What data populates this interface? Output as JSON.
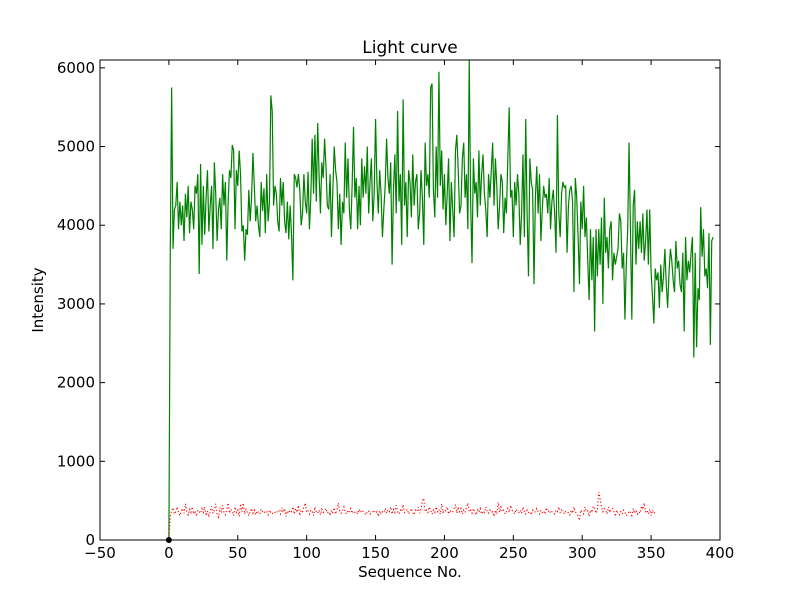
{
  "chart_data": {
    "type": "line",
    "title": "Light curve",
    "xlabel": "Sequence No.",
    "ylabel": "Intensity",
    "xlim": [
      -50,
      400
    ],
    "ylim": [
      0,
      6100
    ],
    "x_ticks": [
      -50,
      0,
      50,
      100,
      150,
      200,
      250,
      300,
      350,
      400
    ],
    "x_tick_labels": [
      "−50",
      "0",
      "50",
      "100",
      "150",
      "200",
      "250",
      "300",
      "350",
      "400"
    ],
    "y_ticks": [
      0,
      1000,
      2000,
      3000,
      4000,
      5000,
      6000
    ],
    "y_tick_labels": [
      "0",
      "1000",
      "2000",
      "3000",
      "4000",
      "5000",
      "6000"
    ],
    "grid": false,
    "series": [
      {
        "color": "#008000",
        "style": "solid",
        "x_start": 0,
        "x_step": 1,
        "values": [
          0,
          3650,
          5750,
          3700,
          4200,
          4250,
          4550,
          3950,
          4300,
          4000,
          4250,
          3800,
          4400,
          4100,
          4500,
          3900,
          4300,
          4200,
          3950,
          4500,
          4400,
          4650,
          3380,
          4780,
          3750,
          4500,
          3880,
          4350,
          4700,
          3920,
          4250,
          4500,
          3700,
          4800,
          4400,
          3800,
          4200,
          4350,
          3950,
          4650,
          4250,
          4550,
          3550,
          4300,
          4700,
          4600,
          5020,
          4950,
          3950,
          4700,
          4500,
          4950,
          4650,
          3920,
          4000,
          3550,
          3950,
          3880,
          4450,
          4050,
          4350,
          4920,
          4500,
          4050,
          4250,
          4000,
          3850,
          4550,
          4180,
          4470,
          3900,
          4650,
          4050,
          4300,
          5650,
          5450,
          4250,
          4500,
          4400,
          4050,
          3920,
          4600,
          4250,
          4550,
          4050,
          3900,
          4300,
          3820,
          4250,
          3880,
          3300,
          4650,
          4600,
          4480,
          4650,
          4450,
          4000,
          4150,
          4650,
          4300,
          4150,
          4680,
          3950,
          4350,
          5100,
          4400,
          5150,
          4300,
          5300,
          4650,
          4150,
          4800,
          4600,
          5100,
          4750,
          4250,
          4200,
          4650,
          3850,
          4450,
          5000,
          4700,
          4550,
          3950,
          4400,
          3750,
          4300,
          4150,
          5050,
          4350,
          4850,
          4200,
          3950,
          4500,
          5250,
          4350,
          4600,
          3950,
          4500,
          4000,
          4850,
          4350,
          4750,
          4400,
          5000,
          4150,
          4550,
          4850,
          4050,
          4400,
          5350,
          4550,
          4150,
          4700,
          4400,
          3850,
          4200,
          4500,
          5100,
          4600,
          4400,
          4800,
          3500,
          4450,
          4900,
          4150,
          5450,
          4300,
          4650,
          3750,
          5600,
          4250,
          4550,
          3850,
          4700,
          4550,
          4100,
          4900,
          4250,
          4550,
          4650,
          3950,
          4150,
          4700,
          4350,
          3750,
          5050,
          4500,
          4650,
          4350,
          5750,
          5800,
          4450,
          4100,
          5000,
          4350,
          5950,
          4500,
          4950,
          4200,
          4650,
          4000,
          4400,
          4850,
          3800,
          4550,
          4200,
          3850,
          4950,
          5150,
          4700,
          4150,
          4250,
          4850,
          5050,
          4350,
          4650,
          3950,
          6100,
          4300,
          3520,
          4850,
          4400,
          4550,
          4100,
          4950,
          4250,
          4650,
          4900,
          4400,
          4200,
          3850,
          4650,
          4350,
          4700,
          5050,
          4250,
          4850,
          4500,
          3950,
          4250,
          4650,
          4550,
          3900,
          4350,
          4150,
          4850,
          5500,
          4350,
          4450,
          3850,
          4550,
          4250,
          4650,
          4400,
          3750,
          4150,
          4900,
          3850,
          5350,
          4150,
          3350,
          4850,
          4550,
          4450,
          3250,
          4350,
          4750,
          4150,
          4650,
          3800,
          4200,
          4500,
          4350,
          4400,
          4150,
          4600,
          3950,
          4300,
          4450,
          4150,
          3650,
          5400,
          4150,
          3850,
          4400,
          4550,
          4480,
          4500,
          3650,
          4250,
          4450,
          4500,
          4300,
          3150,
          4600,
          4350,
          3850,
          3250,
          4300,
          3950,
          4500,
          3850,
          4100,
          3550,
          3050,
          3950,
          3300,
          3850,
          2650,
          3950,
          3350,
          3950,
          3500,
          4100,
          3000,
          4350,
          3650,
          3850,
          3450,
          3950,
          4050,
          3300,
          3650,
          3500,
          3600,
          3700,
          4150,
          4050,
          3450,
          3650,
          2800,
          3500,
          3950,
          5050,
          3950,
          2800,
          4250,
          4450,
          3500,
          4050,
          3700,
          4050,
          3650,
          4150,
          3550,
          3800,
          4200,
          3500,
          4200,
          3400,
          3100,
          2750,
          3450,
          3300,
          3400,
          2950,
          3500,
          3150,
          3350,
          3700,
          3250,
          2950,
          3400,
          3700,
          3550,
          3300,
          3150,
          3800,
          3450,
          3550,
          3250,
          3150,
          3650,
          2650,
          3850,
          3300,
          3550,
          3400,
          3650,
          3850,
          2320,
          3650,
          2450,
          3200,
          3050,
          4230,
          3600,
          3950,
          3350,
          3450,
          3200,
          3900,
          2480,
          3800,
          3850
        ]
      },
      {
        "color": "#ff0000",
        "style": "dotted",
        "x_start": 0,
        "x_step": 1,
        "values": [
          0,
          300,
          380,
          410,
          330,
          360,
          420,
          350,
          310,
          370,
          400,
          340,
          460,
          360,
          320,
          390,
          350,
          420,
          330,
          370,
          300,
          380,
          360,
          340,
          400,
          350,
          420,
          310,
          370,
          290,
          360,
          430,
          340,
          380,
          460,
          330,
          290,
          410,
          360,
          440,
          350,
          320,
          380,
          470,
          340,
          390,
          360,
          310,
          420,
          350,
          380,
          300,
          460,
          360,
          470,
          330,
          390,
          350,
          310,
          360,
          400,
          340,
          380,
          320,
          370,
          350,
          330,
          390,
          360,
          340,
          370,
          360,
          320,
          380,
          350,
          330,
          360,
          350,
          340,
          380,
          370,
          330,
          410,
          350,
          400,
          300,
          370,
          340,
          380,
          360,
          420,
          330,
          400,
          350,
          440,
          310,
          380,
          360,
          420,
          470,
          350,
          370,
          330,
          380,
          360,
          310,
          420,
          360,
          340,
          380,
          320,
          390,
          350,
          370,
          400,
          340,
          360,
          310,
          380,
          350,
          410,
          330,
          390,
          470,
          360,
          340,
          370,
          420,
          350,
          330,
          380,
          360,
          400,
          340,
          370,
          350,
          360,
          330,
          390,
          350,
          380,
          360,
          340,
          320,
          360,
          370,
          330,
          350,
          360,
          380,
          340,
          360,
          300,
          370,
          330,
          360,
          350,
          400,
          340,
          380,
          360,
          420,
          330,
          390,
          350,
          440,
          360,
          330,
          380,
          360,
          450,
          350,
          370,
          390,
          330,
          360,
          400,
          350,
          320,
          380,
          360,
          420,
          340,
          400,
          500,
          530,
          360,
          380,
          350,
          420,
          380,
          330,
          380,
          350,
          420,
          360,
          390,
          330,
          460,
          350,
          380,
          370,
          420,
          330,
          380,
          350,
          360,
          400,
          450,
          340,
          420,
          360,
          400,
          330,
          380,
          350,
          410,
          470,
          360,
          380,
          340,
          400,
          360,
          320,
          380,
          350,
          400,
          330,
          370,
          350,
          420,
          360,
          340,
          380,
          350,
          360,
          300,
          380,
          330,
          480,
          350,
          420,
          360,
          380,
          330,
          360,
          400,
          350,
          440,
          380,
          360,
          330,
          390,
          360,
          350,
          380,
          340,
          420,
          360,
          330,
          380,
          350,
          360,
          320,
          380,
          350,
          360,
          400,
          360,
          330,
          380,
          350,
          370,
          330,
          410,
          360,
          380,
          340,
          360,
          350,
          330,
          380,
          360,
          420,
          350,
          380,
          360,
          330,
          360,
          340,
          350,
          320,
          380,
          340,
          420,
          360,
          330,
          310,
          250,
          380,
          350,
          330,
          420,
          360,
          370,
          300,
          380,
          350,
          430,
          400,
          340,
          380,
          610,
          520,
          420,
          360,
          400,
          380,
          330,
          420,
          350,
          390,
          400,
          360,
          300,
          380,
          340,
          320,
          360,
          330,
          380,
          350,
          310,
          330,
          370,
          350,
          310,
          400,
          340,
          380,
          330,
          360,
          340,
          430,
          390,
          470,
          360,
          380,
          330,
          390,
          310,
          380,
          340,
          360
        ]
      },
      {
        "color": "#0000ff",
        "style": "solid",
        "x_start": 0,
        "x_step": 1,
        "values": [
          0,
          0
        ]
      },
      {
        "color": "#000000",
        "style": "marker",
        "x": [
          0
        ],
        "values": [
          0
        ]
      }
    ]
  }
}
